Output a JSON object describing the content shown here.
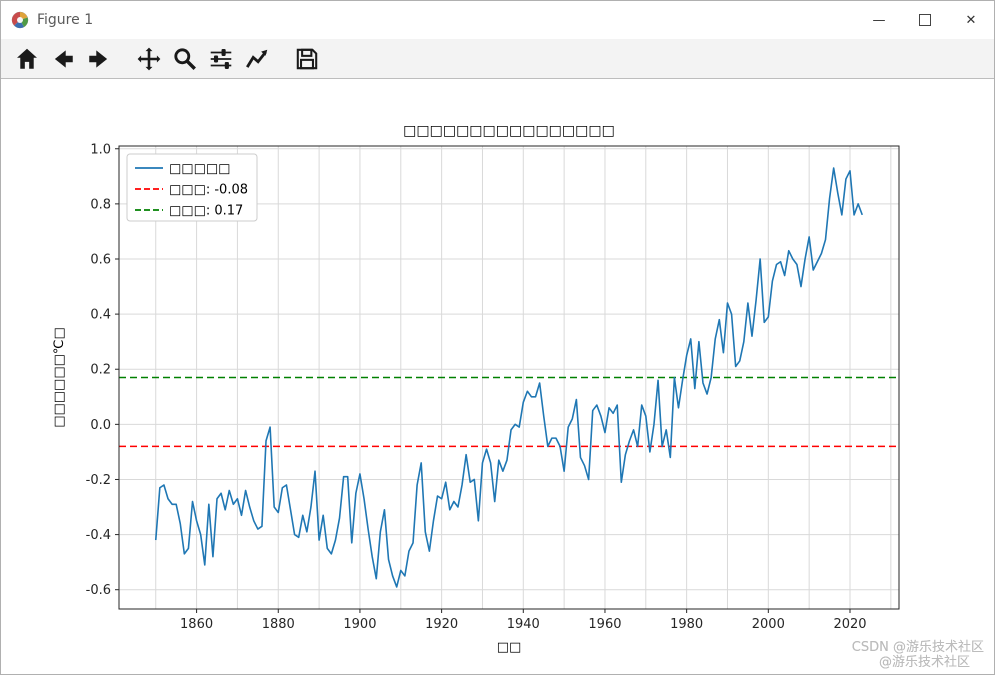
{
  "window": {
    "title": "Figure 1",
    "controls": {
      "minimize": "—",
      "close": "✕"
    }
  },
  "toolbar": {
    "icons": [
      "home",
      "back",
      "forward",
      "pan",
      "zoom-to-rect",
      "configure-subplots",
      "edit-parameters",
      "save"
    ]
  },
  "watermark": {
    "line1": "CSDN @游乐技术社区",
    "line2": "@游乐技术社区"
  },
  "chart_data": {
    "type": "line",
    "title": "□□□□□□□□□□□□□□□□",
    "xlabel": "□□",
    "ylabel": "□□□□□□℃□",
    "xlim": [
      1841,
      2032
    ],
    "ylim": [
      -0.67,
      1.01
    ],
    "x_ticks": [
      1860,
      1880,
      1900,
      1920,
      1940,
      1960,
      1980,
      2000,
      2020
    ],
    "y_ticks": [
      -0.6,
      -0.4,
      -0.2,
      0.0,
      0.2,
      0.4,
      0.6,
      0.8,
      1.0
    ],
    "grid": true,
    "legend_position": "upper left",
    "line_color": "#1f77b4",
    "grid_color": "#d9d9d9",
    "series": [
      {
        "name": "□□□□□",
        "x_start": 1850,
        "x_step": 1,
        "values": [
          -0.42,
          -0.23,
          -0.22,
          -0.27,
          -0.29,
          -0.29,
          -0.36,
          -0.47,
          -0.45,
          -0.28,
          -0.35,
          -0.4,
          -0.51,
          -0.29,
          -0.48,
          -0.27,
          -0.25,
          -0.31,
          -0.24,
          -0.29,
          -0.27,
          -0.33,
          -0.24,
          -0.3,
          -0.35,
          -0.38,
          -0.37,
          -0.06,
          -0.01,
          -0.3,
          -0.32,
          -0.23,
          -0.22,
          -0.31,
          -0.4,
          -0.41,
          -0.33,
          -0.39,
          -0.3,
          -0.17,
          -0.42,
          -0.33,
          -0.45,
          -0.47,
          -0.42,
          -0.34,
          -0.19,
          -0.19,
          -0.43,
          -0.25,
          -0.18,
          -0.27,
          -0.38,
          -0.48,
          -0.56,
          -0.39,
          -0.31,
          -0.49,
          -0.55,
          -0.59,
          -0.53,
          -0.55,
          -0.46,
          -0.43,
          -0.22,
          -0.14,
          -0.39,
          -0.46,
          -0.35,
          -0.26,
          -0.27,
          -0.21,
          -0.31,
          -0.28,
          -0.3,
          -0.22,
          -0.11,
          -0.21,
          -0.2,
          -0.35,
          -0.14,
          -0.09,
          -0.14,
          -0.28,
          -0.13,
          -0.17,
          -0.13,
          -0.02,
          0.0,
          -0.01,
          0.08,
          0.12,
          0.1,
          0.1,
          0.15,
          0.03,
          -0.08,
          -0.05,
          -0.05,
          -0.08,
          -0.17,
          -0.01,
          0.02,
          0.09,
          -0.12,
          -0.15,
          -0.2,
          0.05,
          0.07,
          0.03,
          -0.03,
          0.06,
          0.04,
          0.07,
          -0.21,
          -0.11,
          -0.06,
          -0.02,
          -0.08,
          0.07,
          0.03,
          -0.1,
          0.0,
          0.16,
          -0.08,
          -0.02,
          -0.12,
          0.17,
          0.06,
          0.16,
          0.25,
          0.31,
          0.13,
          0.3,
          0.15,
          0.11,
          0.17,
          0.31,
          0.38,
          0.26,
          0.44,
          0.4,
          0.21,
          0.23,
          0.3,
          0.44,
          0.32,
          0.45,
          0.6,
          0.37,
          0.39,
          0.52,
          0.58,
          0.59,
          0.54,
          0.63,
          0.6,
          0.58,
          0.5,
          0.6,
          0.68,
          0.56,
          0.59,
          0.62,
          0.67,
          0.82,
          0.93,
          0.84,
          0.76,
          0.89,
          0.92,
          0.76,
          0.8,
          0.76
        ]
      }
    ],
    "ref_lines": [
      {
        "label": "□□□: -0.08",
        "value": -0.08,
        "color": "#ff0000",
        "style": "dashed"
      },
      {
        "label": "□□□: 0.17",
        "value": 0.17,
        "color": "#008000",
        "style": "dashed"
      }
    ]
  }
}
